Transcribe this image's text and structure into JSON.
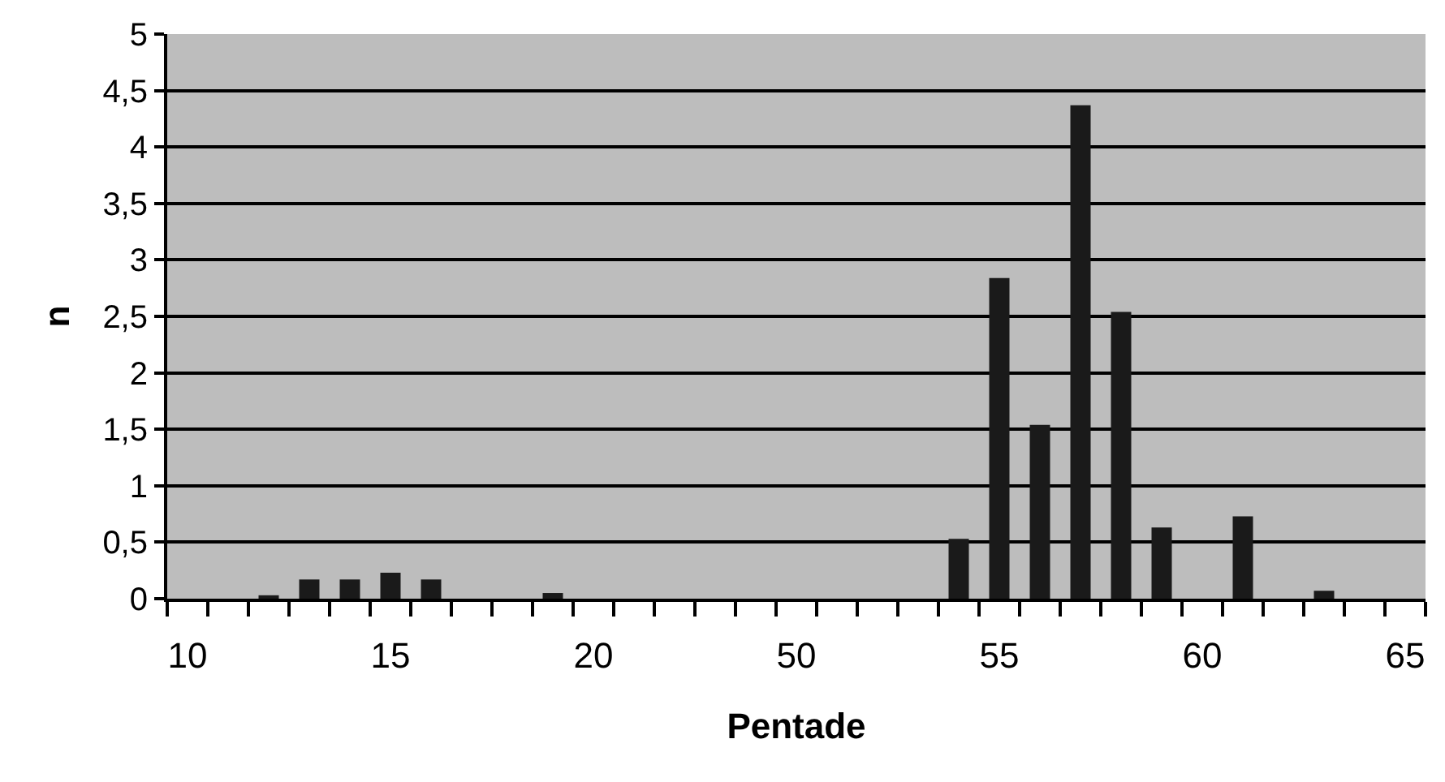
{
  "chart_data": {
    "type": "bar",
    "xlabel": "Pentade",
    "ylabel": "n",
    "categories": [
      "10",
      null,
      null,
      null,
      null,
      "15",
      null,
      null,
      null,
      null,
      "20",
      null,
      null,
      null,
      null,
      "50",
      null,
      null,
      null,
      null,
      "55",
      null,
      null,
      null,
      null,
      "60",
      null,
      null,
      null,
      null,
      "65"
    ],
    "values": [
      null,
      null,
      0.03,
      0.17,
      0.17,
      0.23,
      0.17,
      null,
      null,
      0.05,
      null,
      null,
      null,
      null,
      null,
      null,
      null,
      null,
      null,
      0.53,
      2.84,
      1.54,
      4.37,
      2.54,
      0.63,
      null,
      0.73,
      null,
      0.07,
      null,
      null
    ],
    "color": "#1a1a1a",
    "ylim": [
      0,
      5
    ],
    "yticks": [
      0,
      {
        "value": 0.5,
        "label": "0,5"
      },
      1,
      {
        "value": 1.5,
        "label": "1,5"
      },
      2,
      {
        "value": 2.5,
        "label": "2,5"
      },
      3,
      {
        "value": 3.5,
        "label": "3,5"
      },
      4,
      {
        "value": 4.5,
        "label": "4,5"
      },
      5
    ],
    "grid": "y"
  }
}
